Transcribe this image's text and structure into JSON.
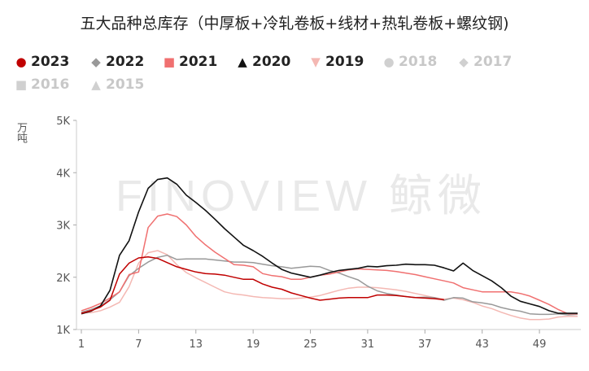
{
  "chart_data": {
    "type": "line",
    "title": "五大品种总库存（中厚板+冷轧卷板+线材+热轧卷板+螺纹钢)",
    "ylabel": "万吨",
    "xlabel": "",
    "watermark": "FINOVIEW 鲸微",
    "ylim": [
      1000,
      5000
    ],
    "xlim": [
      1,
      53
    ],
    "x_ticks": [
      1,
      7,
      13,
      19,
      25,
      31,
      37,
      43,
      49
    ],
    "y_ticks": [
      {
        "value": 1000,
        "label": "1K"
      },
      {
        "value": 2000,
        "label": "2K"
      },
      {
        "value": 3000,
        "label": "3K"
      },
      {
        "value": 4000,
        "label": "4K"
      },
      {
        "value": 5000,
        "label": "5K"
      }
    ],
    "grid": false,
    "legend_position": "top-left",
    "series": [
      {
        "name": "2015",
        "marker": "▲",
        "color": "#d0d0d0",
        "visible": false,
        "values": []
      },
      {
        "name": "2016",
        "marker": "■",
        "color": "#d0d0d0",
        "visible": false,
        "values": []
      },
      {
        "name": "2017",
        "marker": "◆",
        "color": "#d0d0d0",
        "visible": false,
        "values": []
      },
      {
        "name": "2018",
        "marker": "●",
        "color": "#d0d0d0",
        "visible": false,
        "values": []
      },
      {
        "name": "2019",
        "marker": "▼",
        "color": "#f4b8b3",
        "visible": true,
        "values": [
          [
            1,
            1320
          ],
          [
            2,
            1320
          ],
          [
            3,
            1360
          ],
          [
            4,
            1430
          ],
          [
            5,
            1520
          ],
          [
            6,
            1820
          ],
          [
            7,
            2270
          ],
          [
            8,
            2470
          ],
          [
            9,
            2510
          ],
          [
            10,
            2430
          ],
          [
            11,
            2240
          ],
          [
            12,
            2090
          ],
          [
            13,
            1990
          ],
          [
            14,
            1900
          ],
          [
            15,
            1810
          ],
          [
            16,
            1720
          ],
          [
            17,
            1680
          ],
          [
            18,
            1660
          ],
          [
            19,
            1630
          ],
          [
            20,
            1610
          ],
          [
            21,
            1600
          ],
          [
            22,
            1590
          ],
          [
            23,
            1590
          ],
          [
            24,
            1600
          ],
          [
            25,
            1620
          ],
          [
            26,
            1650
          ],
          [
            27,
            1700
          ],
          [
            28,
            1750
          ],
          [
            29,
            1790
          ],
          [
            30,
            1810
          ],
          [
            31,
            1810
          ],
          [
            32,
            1800
          ],
          [
            33,
            1780
          ],
          [
            34,
            1760
          ],
          [
            35,
            1730
          ],
          [
            36,
            1690
          ],
          [
            37,
            1650
          ],
          [
            38,
            1610
          ],
          [
            39,
            1580
          ],
          [
            40,
            1600
          ],
          [
            41,
            1570
          ],
          [
            42,
            1520
          ],
          [
            43,
            1450
          ],
          [
            44,
            1400
          ],
          [
            45,
            1330
          ],
          [
            46,
            1270
          ],
          [
            47,
            1220
          ],
          [
            48,
            1190
          ],
          [
            49,
            1190
          ],
          [
            50,
            1200
          ],
          [
            51,
            1240
          ],
          [
            52,
            1250
          ],
          [
            53,
            1250
          ]
        ]
      },
      {
        "name": "2020",
        "marker": "▲",
        "color": "#111111",
        "visible": true,
        "values": [
          [
            1,
            1300
          ],
          [
            2,
            1350
          ],
          [
            3,
            1450
          ],
          [
            4,
            1750
          ],
          [
            5,
            2420
          ],
          [
            6,
            2700
          ],
          [
            7,
            3250
          ],
          [
            8,
            3700
          ],
          [
            9,
            3870
          ],
          [
            10,
            3900
          ],
          [
            11,
            3780
          ],
          [
            12,
            3570
          ],
          [
            13,
            3430
          ],
          [
            14,
            3280
          ],
          [
            15,
            3110
          ],
          [
            16,
            2930
          ],
          [
            17,
            2770
          ],
          [
            18,
            2610
          ],
          [
            19,
            2510
          ],
          [
            20,
            2400
          ],
          [
            21,
            2270
          ],
          [
            22,
            2150
          ],
          [
            23,
            2080
          ],
          [
            24,
            2040
          ],
          [
            25,
            2000
          ],
          [
            26,
            2040
          ],
          [
            27,
            2090
          ],
          [
            28,
            2130
          ],
          [
            29,
            2150
          ],
          [
            30,
            2170
          ],
          [
            31,
            2210
          ],
          [
            32,
            2200
          ],
          [
            33,
            2220
          ],
          [
            34,
            2230
          ],
          [
            35,
            2250
          ],
          [
            36,
            2240
          ],
          [
            37,
            2240
          ],
          [
            38,
            2230
          ],
          [
            39,
            2180
          ],
          [
            40,
            2120
          ],
          [
            41,
            2270
          ],
          [
            42,
            2130
          ],
          [
            43,
            2030
          ],
          [
            44,
            1930
          ],
          [
            45,
            1800
          ],
          [
            46,
            1640
          ],
          [
            47,
            1540
          ],
          [
            48,
            1490
          ],
          [
            49,
            1440
          ],
          [
            50,
            1360
          ],
          [
            51,
            1310
          ],
          [
            52,
            1310
          ],
          [
            53,
            1310
          ]
        ]
      },
      {
        "name": "2021",
        "marker": "■",
        "color": "#f07070",
        "visible": true,
        "values": [
          [
            1,
            1360
          ],
          [
            2,
            1420
          ],
          [
            3,
            1500
          ],
          [
            4,
            1600
          ],
          [
            5,
            1720
          ],
          [
            6,
            2050
          ],
          [
            7,
            2100
          ],
          [
            8,
            2950
          ],
          [
            9,
            3170
          ],
          [
            10,
            3210
          ],
          [
            11,
            3160
          ],
          [
            12,
            3000
          ],
          [
            13,
            2780
          ],
          [
            14,
            2620
          ],
          [
            15,
            2480
          ],
          [
            16,
            2360
          ],
          [
            17,
            2240
          ],
          [
            18,
            2230
          ],
          [
            19,
            2200
          ],
          [
            20,
            2070
          ],
          [
            21,
            2030
          ],
          [
            22,
            2010
          ],
          [
            23,
            1960
          ],
          [
            24,
            1960
          ],
          [
            25,
            2000
          ],
          [
            26,
            2040
          ],
          [
            27,
            2060
          ],
          [
            28,
            2100
          ],
          [
            29,
            2140
          ],
          [
            30,
            2160
          ],
          [
            31,
            2150
          ],
          [
            32,
            2140
          ],
          [
            33,
            2130
          ],
          [
            34,
            2110
          ],
          [
            35,
            2080
          ],
          [
            36,
            2050
          ],
          [
            37,
            2010
          ],
          [
            38,
            1970
          ],
          [
            39,
            1930
          ],
          [
            40,
            1890
          ],
          [
            41,
            1800
          ],
          [
            42,
            1760
          ],
          [
            43,
            1720
          ],
          [
            44,
            1720
          ],
          [
            45,
            1720
          ],
          [
            46,
            1720
          ],
          [
            47,
            1690
          ],
          [
            48,
            1640
          ],
          [
            49,
            1560
          ],
          [
            50,
            1480
          ],
          [
            51,
            1380
          ],
          [
            52,
            1300
          ],
          [
            53,
            1300
          ]
        ]
      },
      {
        "name": "2022",
        "marker": "◆",
        "color": "#999999",
        "visible": true,
        "values": [
          [
            1,
            1330
          ],
          [
            2,
            1380
          ],
          [
            3,
            1450
          ],
          [
            4,
            1570
          ],
          [
            5,
            1720
          ],
          [
            6,
            2030
          ],
          [
            7,
            2170
          ],
          [
            8,
            2290
          ],
          [
            9,
            2380
          ],
          [
            10,
            2420
          ],
          [
            11,
            2340
          ],
          [
            12,
            2350
          ],
          [
            13,
            2350
          ],
          [
            14,
            2350
          ],
          [
            15,
            2330
          ],
          [
            16,
            2310
          ],
          [
            17,
            2290
          ],
          [
            18,
            2290
          ],
          [
            19,
            2280
          ],
          [
            20,
            2250
          ],
          [
            21,
            2220
          ],
          [
            22,
            2200
          ],
          [
            23,
            2170
          ],
          [
            24,
            2190
          ],
          [
            25,
            2210
          ],
          [
            26,
            2200
          ],
          [
            27,
            2130
          ],
          [
            28,
            2080
          ],
          [
            29,
            2010
          ],
          [
            30,
            1950
          ],
          [
            31,
            1830
          ],
          [
            32,
            1740
          ],
          [
            33,
            1690
          ],
          [
            34,
            1660
          ],
          [
            35,
            1630
          ],
          [
            36,
            1610
          ],
          [
            37,
            1620
          ],
          [
            38,
            1610
          ],
          [
            39,
            1560
          ],
          [
            40,
            1610
          ],
          [
            41,
            1600
          ],
          [
            42,
            1530
          ],
          [
            43,
            1510
          ],
          [
            44,
            1480
          ],
          [
            45,
            1420
          ],
          [
            46,
            1380
          ],
          [
            47,
            1350
          ],
          [
            48,
            1300
          ],
          [
            49,
            1290
          ],
          [
            50,
            1290
          ],
          [
            51,
            1300
          ],
          [
            52,
            1280
          ],
          [
            53,
            1290
          ]
        ]
      },
      {
        "name": "2023",
        "marker": "●",
        "color": "#c00000",
        "visible": true,
        "values": [
          [
            1,
            1310
          ],
          [
            2,
            1360
          ],
          [
            3,
            1430
          ],
          [
            4,
            1560
          ],
          [
            5,
            2060
          ],
          [
            6,
            2270
          ],
          [
            7,
            2370
          ],
          [
            8,
            2390
          ],
          [
            9,
            2360
          ],
          [
            10,
            2280
          ],
          [
            11,
            2200
          ],
          [
            12,
            2150
          ],
          [
            13,
            2100
          ],
          [
            14,
            2070
          ],
          [
            15,
            2060
          ],
          [
            16,
            2040
          ],
          [
            17,
            2000
          ],
          [
            18,
            1960
          ],
          [
            19,
            1960
          ],
          [
            20,
            1870
          ],
          [
            21,
            1810
          ],
          [
            22,
            1770
          ],
          [
            23,
            1700
          ],
          [
            24,
            1650
          ],
          [
            25,
            1600
          ],
          [
            26,
            1560
          ],
          [
            27,
            1580
          ],
          [
            28,
            1600
          ],
          [
            29,
            1610
          ],
          [
            30,
            1610
          ],
          [
            31,
            1610
          ],
          [
            32,
            1660
          ],
          [
            33,
            1660
          ],
          [
            34,
            1650
          ],
          [
            35,
            1630
          ],
          [
            36,
            1610
          ],
          [
            37,
            1600
          ],
          [
            38,
            1590
          ],
          [
            39,
            1570
          ]
        ]
      }
    ],
    "legend_order": [
      "2023",
      "2022",
      "2021",
      "2020",
      "2019",
      "2018",
      "2017",
      "2016",
      "2015"
    ]
  }
}
